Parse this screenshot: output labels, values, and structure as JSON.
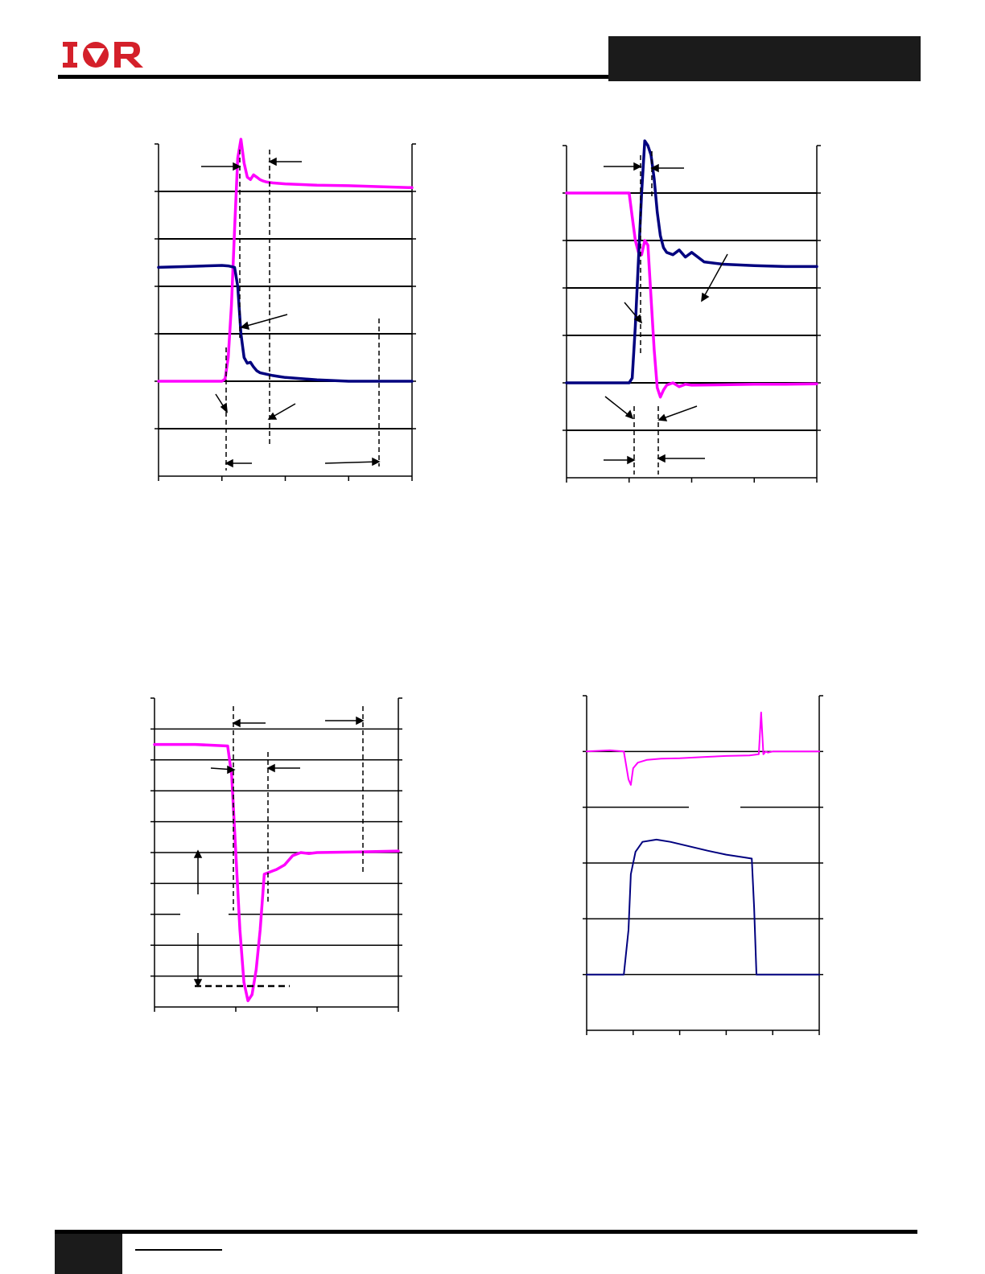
{
  "header": {
    "logo_text": "IOR",
    "brand_color": "#d4202a"
  },
  "colors": {
    "magenta": "#ff00ff",
    "navy": "#00007f",
    "grid": "#000000"
  },
  "chart_data": [
    {
      "type": "line",
      "series": [
        {
          "x": [
            0,
            0.5,
            1,
            1.05,
            1.1,
            1.15,
            1.2,
            1.25,
            1.3,
            1.35,
            1.4,
            1.45,
            1.5,
            1.55,
            1.6,
            1.65,
            1.7,
            1.8,
            1.9,
            2.0,
            2.5,
            3.0,
            3.5,
            4.0
          ],
          "y": [
            1,
            1,
            1,
            1.05,
            1.5,
            2.6,
            4.2,
            5.7,
            6.1,
            5.6,
            5.3,
            5.25,
            5.35,
            5.3,
            5.25,
            5.22,
            5.2,
            5.18,
            5.17,
            5.16,
            5.13,
            5.12,
            5.1,
            5.08
          ]
        },
        {
          "x": [
            0,
            0.5,
            1,
            1.1,
            1.2,
            1.25,
            1.3,
            1.35,
            1.4,
            1.45,
            1.5,
            1.55,
            1.6,
            1.7,
            1.8,
            1.9,
            2.0,
            2.5,
            3.0,
            3.5,
            4.0
          ],
          "y": [
            3.4,
            3.42,
            3.44,
            3.43,
            3.4,
            3.0,
            2.0,
            1.5,
            1.38,
            1.4,
            1.3,
            1.22,
            1.18,
            1.15,
            1.12,
            1.1,
            1.08,
            1.03,
            1.0,
            1.0,
            1.0
          ]
        }
      ],
      "ylim": [
        -1,
        6
      ],
      "xlim": [
        0,
        4
      ]
    },
    {
      "type": "line",
      "series": [
        {
          "x": [
            0,
            0.5,
            1,
            1.05,
            1.1,
            1.15,
            1.2,
            1.25,
            1.3,
            1.35,
            1.4,
            1.45,
            1.5,
            1.55,
            1.6,
            1.7,
            1.8,
            1.9,
            2.0,
            2.5,
            3.0,
            3.5,
            4.0
          ],
          "y": [
            5,
            5,
            5,
            4.5,
            4.0,
            3.75,
            3.7,
            4.0,
            3.9,
            2.8,
            1.7,
            0.9,
            0.7,
            0.85,
            0.95,
            1.0,
            0.92,
            0.97,
            0.95,
            0.96,
            0.97,
            0.97,
            0.98
          ]
        },
        {
          "x": [
            0,
            0.5,
            1,
            1.05,
            1.1,
            1.15,
            1.2,
            1.25,
            1.3,
            1.35,
            1.4,
            1.45,
            1.5,
            1.55,
            1.6,
            1.7,
            1.8,
            1.9,
            2.0,
            2.2,
            2.5,
            3.0,
            3.5,
            4.0
          ],
          "y": [
            1,
            1,
            1,
            1.1,
            2.2,
            3.6,
            5.0,
            6.1,
            6.0,
            5.8,
            5.3,
            4.6,
            4.1,
            3.85,
            3.75,
            3.7,
            3.8,
            3.65,
            3.75,
            3.55,
            3.5,
            3.47,
            3.45,
            3.45
          ]
        }
      ],
      "ylim": [
        -1,
        6
      ],
      "xlim": [
        0,
        4
      ]
    },
    {
      "type": "line",
      "series": [
        {
          "x": [
            0,
            0.5,
            0.9,
            0.95,
            1.0,
            1.05,
            1.1,
            1.15,
            1.2,
            1.25,
            1.3,
            1.35,
            1.4,
            1.45,
            1.5,
            1.6,
            1.7,
            1.8,
            1.9,
            2.0,
            2.5,
            3.0
          ],
          "y": [
            8.5,
            8.5,
            8.45,
            7.5,
            5.0,
            2.5,
            0.8,
            0.2,
            0.4,
            1.2,
            2.5,
            4.3,
            4.35,
            4.4,
            4.45,
            4.6,
            4.9,
            5.0,
            4.97,
            5.0,
            5.02,
            5.05
          ]
        }
      ],
      "ylim": [
        0,
        10
      ],
      "xlim": [
        0,
        3
      ]
    },
    {
      "type": "line",
      "series": [
        {
          "x": [
            0,
            0.5,
            0.8,
            0.9,
            0.95,
            1.0,
            1.1,
            1.3,
            1.6,
            2.0,
            2.5,
            3.0,
            3.5,
            3.7,
            3.75,
            3.8,
            3.85,
            3.9,
            4.0,
            4.5,
            5.0
          ],
          "y": [
            5.0,
            5.02,
            5.0,
            4.5,
            4.4,
            4.7,
            4.8,
            4.85,
            4.87,
            4.88,
            4.9,
            4.92,
            4.93,
            4.95,
            5.7,
            4.95,
            5.0,
            4.98,
            5.0,
            5.0,
            5.0
          ]
        },
        {
          "x": [
            0,
            0.5,
            0.8,
            0.9,
            0.95,
            1.05,
            1.2,
            1.5,
            1.8,
            2.2,
            2.6,
            3.0,
            3.4,
            3.55,
            3.6,
            3.65,
            3.7,
            4.0,
            4.5,
            5.0
          ],
          "y": [
            1.0,
            1.0,
            1.0,
            1.8,
            2.8,
            3.2,
            3.38,
            3.42,
            3.38,
            3.3,
            3.22,
            3.15,
            3.1,
            3.08,
            2.2,
            1.0,
            1.0,
            1.0,
            1.0,
            1.0
          ]
        }
      ],
      "ylim": [
        0,
        6
      ],
      "xlim": [
        0,
        5
      ]
    }
  ]
}
